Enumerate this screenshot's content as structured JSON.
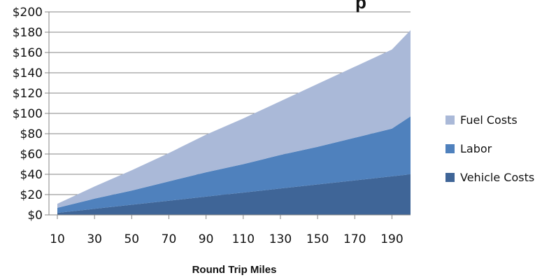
{
  "colors": {
    "fuel": "#aab9d8",
    "labor": "#4f81bd",
    "vehicle": "#3f6597",
    "axis": "#868686",
    "grid": "#868686"
  },
  "chart_data": {
    "type": "area",
    "stacked": true,
    "title_fragment": "p",
    "xlabel": "Round Trip Miles",
    "ylabel": "",
    "x": [
      10,
      30,
      50,
      70,
      90,
      110,
      130,
      150,
      170,
      190,
      200
    ],
    "x_tick_labels": [
      "10",
      "30",
      "50",
      "70",
      "90",
      "110",
      "130",
      "150",
      "170",
      "190"
    ],
    "y_tick_labels": [
      "$0",
      "$20",
      "$40",
      "$60",
      "$80",
      "$100",
      "$120",
      "$140",
      "$160",
      "$180",
      "$200"
    ],
    "ylim": [
      0,
      200
    ],
    "grid": true,
    "legend_position": "right",
    "series": [
      {
        "name": "Vehicle Costs",
        "values": [
          2,
          6,
          10,
          14,
          18,
          22,
          26,
          30,
          34,
          38,
          40
        ]
      },
      {
        "name": "Labor",
        "values": [
          5,
          10,
          14,
          19,
          24,
          28,
          33,
          37,
          42,
          47,
          57
        ]
      },
      {
        "name": "Fuel Costs",
        "values": [
          4,
          12,
          20,
          28,
          37,
          45,
          53,
          62,
          70,
          78,
          85
        ]
      }
    ],
    "legend_order": [
      "Fuel Costs",
      "Labor",
      "Vehicle Costs"
    ]
  }
}
